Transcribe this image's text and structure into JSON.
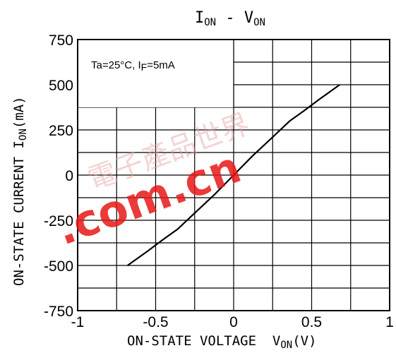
{
  "chart_data": {
    "type": "line",
    "title": {
      "main": "I",
      "main_sub": "ON",
      "sep": " - ",
      "second": "V",
      "second_sub": "ON"
    },
    "xlabel": {
      "text": "ON-STATE VOLTAGE  V",
      "sub": "ON",
      "unit": "(V)"
    },
    "ylabel": {
      "text": "ON-STATE CURRENT I",
      "sub": "ON",
      "unit": "(mA)"
    },
    "xlim": [
      -1,
      1
    ],
    "ylim": [
      -750,
      750
    ],
    "x_ticks": [
      "-1",
      "-0.5",
      "0",
      "0.5",
      "1"
    ],
    "y_ticks": [
      "750",
      "500",
      "250",
      "0",
      "-250",
      "-500",
      "-750"
    ],
    "grid": true,
    "annotation": {
      "text": "Ta=25°C, I",
      "sub": "F",
      "rest": "=5mA"
    },
    "series": [
      {
        "x": [
          -0.68,
          -0.55,
          -0.45,
          -0.36,
          -0.25,
          -0.12,
          0,
          0.12,
          0.25,
          0.36,
          0.45,
          0.55,
          0.68
        ],
        "y": [
          -500,
          -420,
          -355,
          -300,
          -210,
          -105,
          0,
          105,
          210,
          300,
          355,
          420,
          500
        ]
      }
    ]
  },
  "watermark": {
    "text": ".com.cn",
    "cn_text": "電子產品世界"
  }
}
